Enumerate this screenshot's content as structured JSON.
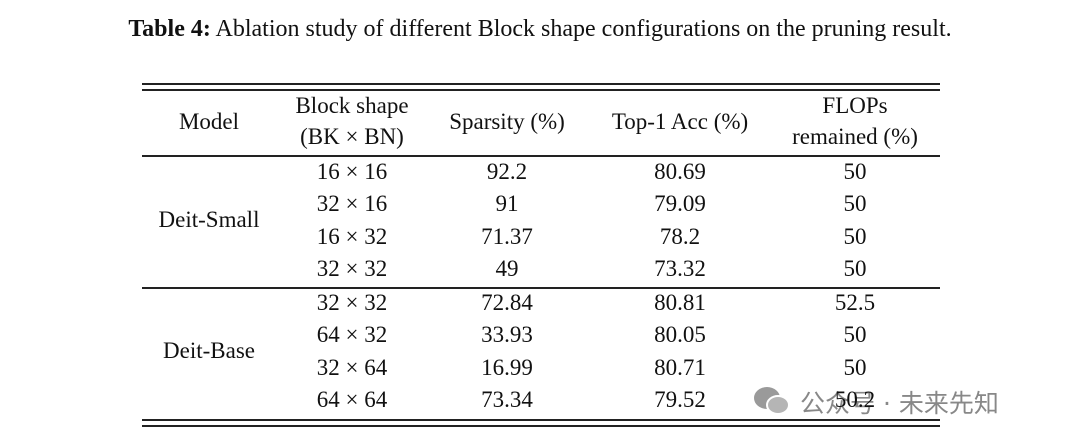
{
  "caption": {
    "label": "Table 4:",
    "text": "Ablation study of different Block shape configurations on the pruning result."
  },
  "table": {
    "header": [
      [
        "Model"
      ],
      [
        "Block shape",
        "(BK × BN)"
      ],
      [
        "Sparsity (%)"
      ],
      [
        "Top-1 Acc (%)"
      ],
      [
        "FLOPs",
        "remained (%)"
      ]
    ],
    "groups": [
      {
        "model": "Deit-Small",
        "rows": [
          [
            "16 × 16",
            "92.2",
            "80.69",
            "50"
          ],
          [
            "32 × 16",
            "91",
            "79.09",
            "50"
          ],
          [
            "16 × 32",
            "71.37",
            "78.2",
            "50"
          ],
          [
            "32 × 32",
            "49",
            "73.32",
            "50"
          ]
        ]
      },
      {
        "model": "Deit-Base",
        "rows": [
          [
            "32 × 32",
            "72.84",
            "80.81",
            "52.5"
          ],
          [
            "64 × 32",
            "33.93",
            "80.05",
            "50"
          ],
          [
            "32 × 64",
            "16.99",
            "80.71",
            "50"
          ],
          [
            "64 × 64",
            "73.34",
            "79.52",
            "50.2"
          ]
        ]
      }
    ]
  },
  "watermark": "公众号 · 未来先知"
}
